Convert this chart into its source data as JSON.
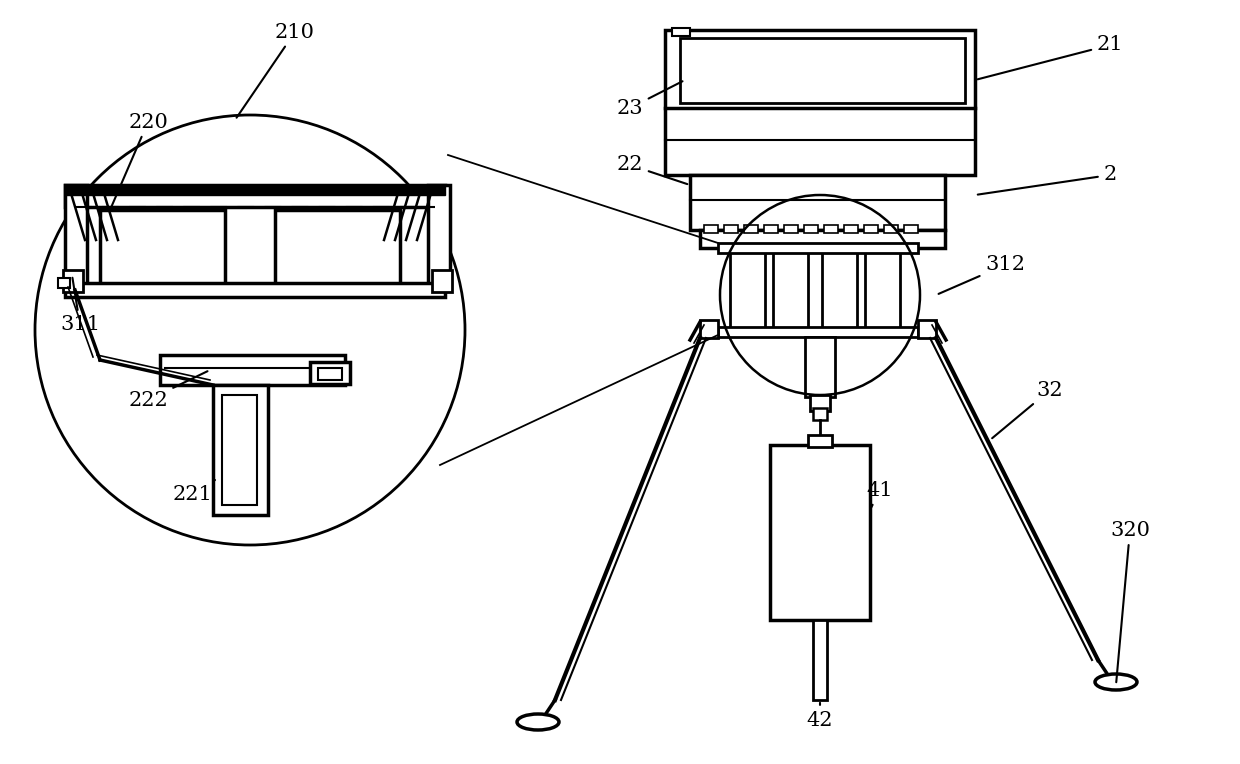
{
  "bg_color": "#ffffff",
  "line_color": "#000000",
  "fig_width": 12.4,
  "fig_height": 7.64,
  "dpi": 100
}
